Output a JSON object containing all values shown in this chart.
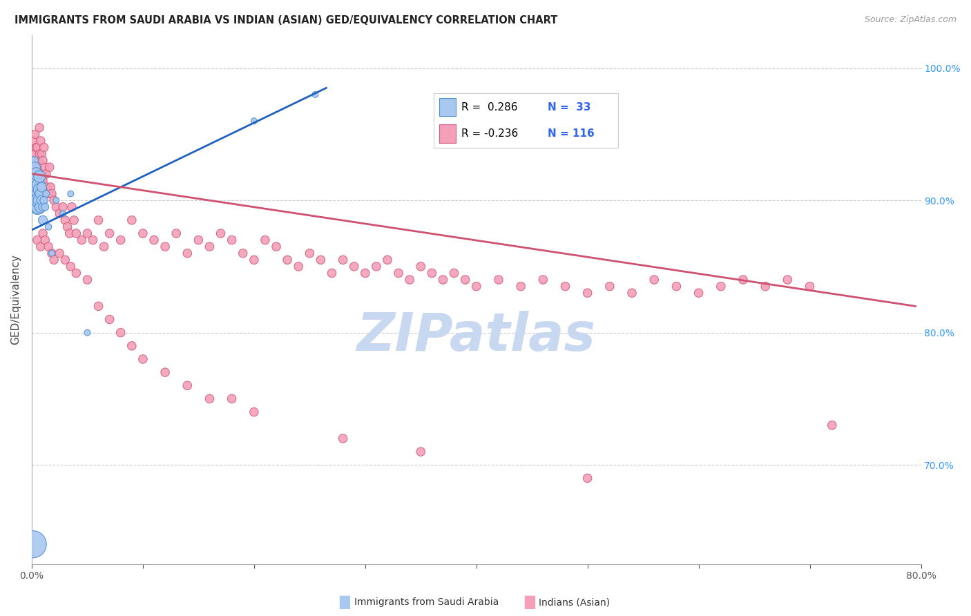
{
  "title": "IMMIGRANTS FROM SAUDI ARABIA VS INDIAN (ASIAN) GED/EQUIVALENCY CORRELATION CHART",
  "source": "Source: ZipAtlas.com",
  "ylabel": "GED/Equivalency",
  "ytick_labels": [
    "100.0%",
    "90.0%",
    "80.0%",
    "70.0%"
  ],
  "ytick_values": [
    1.0,
    0.9,
    0.8,
    0.7
  ],
  "xmin": 0.0,
  "xmax": 0.8,
  "ymin": 0.625,
  "ymax": 1.025,
  "color_blue": "#A8C8F0",
  "color_pink": "#F4A0B8",
  "edge_blue": "#5090D0",
  "edge_pink": "#D06080",
  "trendline_blue": "#2060C0",
  "trendline_pink": "#D05070",
  "watermark_color": "#C8D8F0",
  "blue_trend_x0": 0.001,
  "blue_trend_x1": 0.265,
  "blue_trend_y0": 0.878,
  "blue_trend_y1": 0.985,
  "pink_trend_x0": 0.001,
  "pink_trend_x1": 0.795,
  "pink_trend_y0": 0.92,
  "pink_trend_y1": 0.82,
  "blue_x": [
    0.001,
    0.002,
    0.003,
    0.003,
    0.004,
    0.004,
    0.005,
    0.005,
    0.005,
    0.006,
    0.006,
    0.006,
    0.006,
    0.007,
    0.007,
    0.007,
    0.008,
    0.008,
    0.009,
    0.009,
    0.01,
    0.01,
    0.011,
    0.012,
    0.013,
    0.015,
    0.018,
    0.022,
    0.028,
    0.035,
    0.05,
    0.2,
    0.255
  ],
  "blue_y": [
    0.64,
    0.93,
    0.91,
    0.925,
    0.91,
    0.92,
    0.9,
    0.908,
    0.895,
    0.912,
    0.905,
    0.895,
    0.9,
    0.918,
    0.908,
    0.9,
    0.905,
    0.895,
    0.91,
    0.9,
    0.895,
    0.885,
    0.9,
    0.895,
    0.905,
    0.88,
    0.86,
    0.9,
    0.89,
    0.905,
    0.8,
    0.96,
    0.98
  ],
  "blue_sizes": [
    800,
    80,
    100,
    120,
    150,
    170,
    200,
    220,
    240,
    180,
    200,
    220,
    240,
    150,
    170,
    180,
    130,
    140,
    100,
    110,
    80,
    90,
    70,
    60,
    50,
    45,
    40,
    40,
    40,
    40,
    40,
    40,
    40
  ],
  "pink_x": [
    0.001,
    0.002,
    0.003,
    0.003,
    0.004,
    0.004,
    0.005,
    0.005,
    0.006,
    0.006,
    0.007,
    0.007,
    0.008,
    0.008,
    0.009,
    0.009,
    0.01,
    0.01,
    0.011,
    0.012,
    0.013,
    0.014,
    0.015,
    0.016,
    0.017,
    0.018,
    0.02,
    0.022,
    0.025,
    0.028,
    0.03,
    0.032,
    0.034,
    0.036,
    0.038,
    0.04,
    0.045,
    0.05,
    0.055,
    0.06,
    0.065,
    0.07,
    0.08,
    0.09,
    0.1,
    0.11,
    0.12,
    0.13,
    0.14,
    0.15,
    0.16,
    0.17,
    0.18,
    0.19,
    0.2,
    0.21,
    0.22,
    0.23,
    0.24,
    0.25,
    0.26,
    0.27,
    0.28,
    0.29,
    0.3,
    0.31,
    0.32,
    0.33,
    0.34,
    0.35,
    0.36,
    0.37,
    0.38,
    0.39,
    0.4,
    0.42,
    0.44,
    0.46,
    0.48,
    0.5,
    0.52,
    0.54,
    0.56,
    0.58,
    0.6,
    0.62,
    0.64,
    0.66,
    0.68,
    0.7,
    0.005,
    0.008,
    0.01,
    0.012,
    0.015,
    0.018,
    0.02,
    0.025,
    0.03,
    0.035,
    0.04,
    0.05,
    0.06,
    0.07,
    0.08,
    0.09,
    0.1,
    0.12,
    0.14,
    0.16,
    0.18,
    0.2,
    0.28,
    0.35,
    0.5,
    0.72
  ],
  "pink_y": [
    0.93,
    0.945,
    0.935,
    0.95,
    0.94,
    0.925,
    0.92,
    0.94,
    0.93,
    0.91,
    0.955,
    0.935,
    0.945,
    0.92,
    0.935,
    0.92,
    0.93,
    0.915,
    0.94,
    0.925,
    0.92,
    0.91,
    0.905,
    0.925,
    0.91,
    0.905,
    0.9,
    0.895,
    0.89,
    0.895,
    0.885,
    0.88,
    0.875,
    0.895,
    0.885,
    0.875,
    0.87,
    0.875,
    0.87,
    0.885,
    0.865,
    0.875,
    0.87,
    0.885,
    0.875,
    0.87,
    0.865,
    0.875,
    0.86,
    0.87,
    0.865,
    0.875,
    0.87,
    0.86,
    0.855,
    0.87,
    0.865,
    0.855,
    0.85,
    0.86,
    0.855,
    0.845,
    0.855,
    0.85,
    0.845,
    0.85,
    0.855,
    0.845,
    0.84,
    0.85,
    0.845,
    0.84,
    0.845,
    0.84,
    0.835,
    0.84,
    0.835,
    0.84,
    0.835,
    0.83,
    0.835,
    0.83,
    0.84,
    0.835,
    0.83,
    0.835,
    0.84,
    0.835,
    0.84,
    0.835,
    0.87,
    0.865,
    0.875,
    0.87,
    0.865,
    0.86,
    0.855,
    0.86,
    0.855,
    0.85,
    0.845,
    0.84,
    0.82,
    0.81,
    0.8,
    0.79,
    0.78,
    0.77,
    0.76,
    0.75,
    0.75,
    0.74,
    0.72,
    0.71,
    0.69,
    0.73
  ],
  "pink_sizes": [
    80,
    80,
    80,
    80,
    80,
    80,
    80,
    80,
    80,
    80,
    80,
    80,
    80,
    80,
    80,
    80,
    80,
    80,
    80,
    80,
    80,
    80,
    80,
    80,
    80,
    80,
    80,
    80,
    80,
    80,
    80,
    80,
    80,
    80,
    80,
    80,
    80,
    80,
    80,
    80,
    80,
    80,
    80,
    80,
    80,
    80,
    80,
    80,
    80,
    80,
    80,
    80,
    80,
    80,
    80,
    80,
    80,
    80,
    80,
    80,
    80,
    80,
    80,
    80,
    80,
    80,
    80,
    80,
    80,
    80,
    80,
    80,
    80,
    80,
    80,
    80,
    80,
    80,
    80,
    80,
    80,
    80,
    80,
    80,
    80,
    80,
    80,
    80,
    80,
    80,
    80,
    80,
    80,
    80,
    80,
    80,
    80,
    80,
    80,
    80,
    80,
    80,
    80,
    80,
    80,
    80,
    80,
    80,
    80,
    80,
    80,
    80,
    80,
    80,
    80,
    80
  ]
}
